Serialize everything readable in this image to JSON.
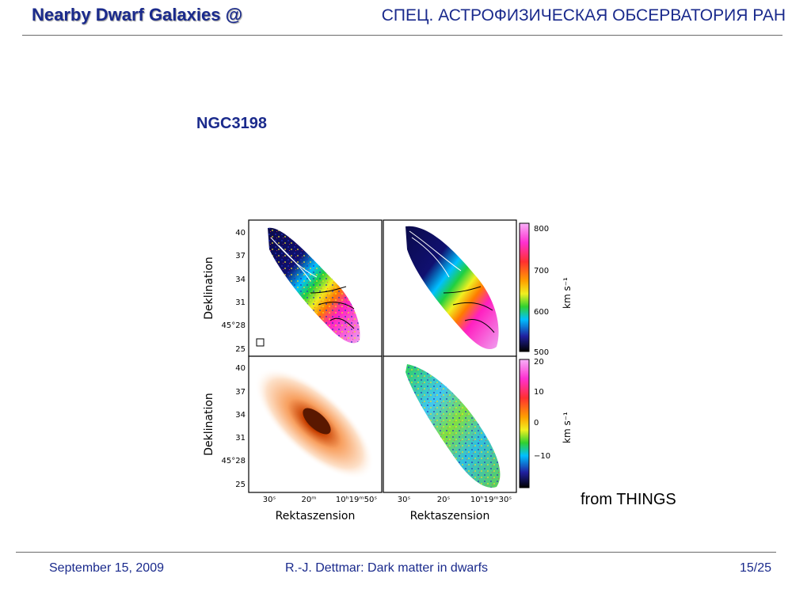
{
  "header": {
    "title": "Nearby Dwarf Galaxies @",
    "institute": "СПЕЦ. АСТРОФИЗИЧЕСКАЯ ОБСЕРВАТОРИЯ РАН"
  },
  "slide": {
    "title": "NGC3198",
    "credit": "from THINGS"
  },
  "figure": {
    "ylabel": "Deklination",
    "ylabel_bottom": "Deklination",
    "xlabel_left": "Rektaszension",
    "xlabel_right": "Rektaszension",
    "yticks": [
      "40",
      "37",
      "34",
      "31",
      "45°28",
      "25"
    ],
    "xticks_left": [
      "30ˢ",
      "20ᵐ",
      "10ʰ19ᵐ50ˢ"
    ],
    "xticks_right": [
      "30ˢ",
      "20ˢ",
      "10ʰ19ᵐ30ˢ"
    ],
    "colorbar_top": {
      "ticks": [
        "800",
        "700",
        "600",
        "500"
      ],
      "unit": "km s⁻¹"
    },
    "colorbar_bottom": {
      "ticks": [
        "20",
        "10",
        "0",
        "−10"
      ],
      "unit": "km s⁻¹"
    }
  },
  "footer": {
    "date": "September 15, 2009",
    "author": "R.-J. Dettmar: Dark matter in dwarfs",
    "page": "15/25"
  }
}
